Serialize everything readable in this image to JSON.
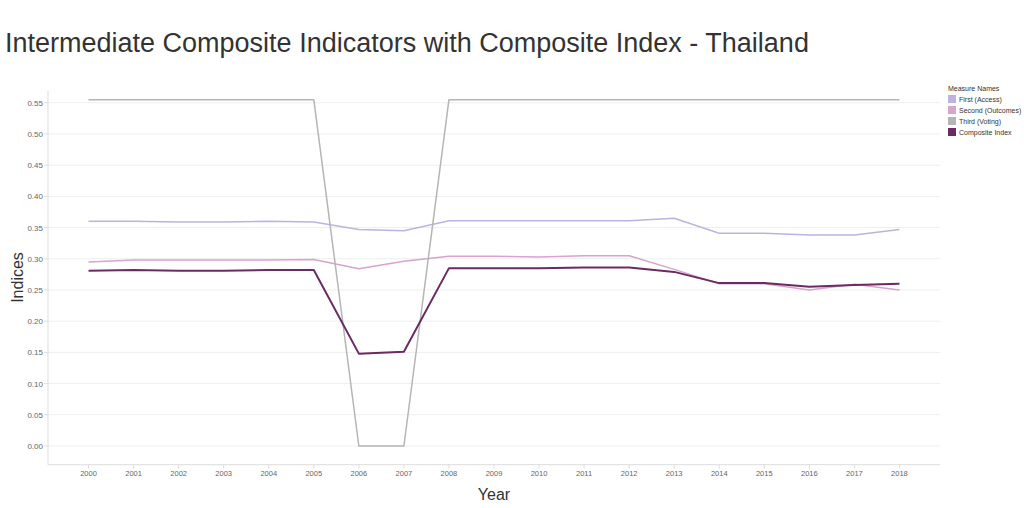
{
  "chart_data": {
    "type": "line",
    "title": "Intermediate Composite Indicators with Composite Index - Thailand",
    "x_label": "Year",
    "y_label": "Indices",
    "legend_title": "Measure Names",
    "legend": "top-right",
    "grid": true,
    "categories": [
      "2000",
      "2001",
      "2002",
      "2003",
      "2004",
      "2005",
      "2006",
      "2007",
      "2008",
      "2009",
      "2010",
      "2011",
      "2012",
      "2013",
      "2014",
      "2015",
      "2016",
      "2017",
      "2018"
    ],
    "ylim": [
      -0.03,
      0.57
    ],
    "yticks": [
      {
        "value": 0,
        "label": "0.00"
      },
      0.05,
      {
        "value": 0.1,
        "label": "0.10"
      },
      0.15,
      {
        "value": 0.2,
        "label": "0.20"
      },
      0.25,
      {
        "value": 0.3,
        "label": "0.30"
      },
      0.35,
      {
        "value": 0.4,
        "label": "0.40"
      },
      0.45,
      {
        "value": 0.5,
        "label": "0.50"
      },
      0.55
    ],
    "series": [
      {
        "name": "First (Access)",
        "color": "#bcb3e2",
        "values": [
          0.36,
          0.36,
          0.359,
          0.359,
          0.36,
          0.359,
          0.347,
          0.345,
          0.361,
          0.361,
          0.361,
          0.361,
          0.361,
          0.365,
          0.341,
          0.341,
          0.338,
          0.338,
          0.347
        ]
      },
      {
        "name": "Second (Outcomes)",
        "color": "#d6a4cd",
        "values": [
          0.295,
          0.298,
          0.298,
          0.298,
          0.298,
          0.299,
          0.284,
          0.296,
          0.304,
          0.304,
          0.303,
          0.305,
          0.305,
          0.283,
          0.26,
          0.26,
          0.25,
          0.259,
          0.25
        ]
      },
      {
        "name": "Third (Voting)",
        "color": "#b5b5b5",
        "values": [
          0.555,
          0.555,
          0.555,
          0.555,
          0.555,
          0.555,
          0,
          0,
          0.555,
          0.555,
          0.555,
          0.555,
          0.555,
          0.555,
          0.555,
          0.555,
          0.555,
          0.555,
          0.555
        ]
      },
      {
        "name": "Composite Index",
        "color": "#6b2a63",
        "values": [
          0.281,
          0.282,
          0.281,
          0.281,
          0.282,
          0.282,
          0.148,
          0.151,
          0.285,
          0.285,
          0.285,
          0.286,
          0.286,
          0.279,
          0.261,
          0.261,
          0.255,
          0.258,
          0.26
        ]
      }
    ]
  }
}
